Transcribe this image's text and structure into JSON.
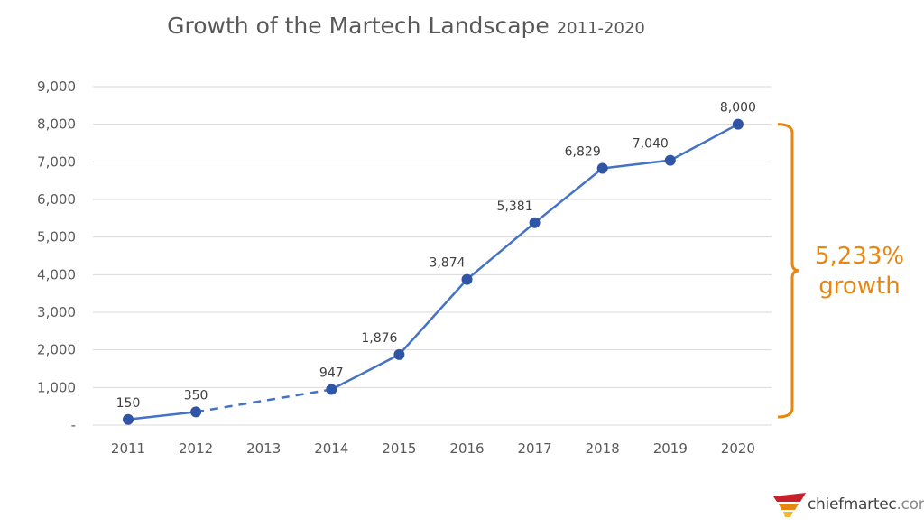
{
  "chart_data": {
    "type": "line",
    "title": "Growth of the Martech Landscape",
    "subtitle": "2011-2020",
    "categories": [
      "2011",
      "2012",
      "2013",
      "2014",
      "2015",
      "2016",
      "2017",
      "2018",
      "2019",
      "2020"
    ],
    "values": [
      150,
      350,
      null,
      947,
      1876,
      3874,
      5381,
      6829,
      7040,
      8000
    ],
    "data_labels": [
      "150",
      "350",
      "",
      "947",
      "1,876",
      "3,874",
      "5,381",
      "6,829",
      "7,040",
      "8,000"
    ],
    "dashed_segment": [
      "2012",
      "2014"
    ],
    "ylim": [
      0,
      9000
    ],
    "yticks": [
      0,
      1000,
      2000,
      3000,
      4000,
      5000,
      6000,
      7000,
      8000,
      9000
    ],
    "ytick_labels": [
      "-",
      "1,000",
      "2,000",
      "3,000",
      "4,000",
      "5,000",
      "6,000",
      "7,000",
      "8,000",
      "9,000"
    ],
    "grid": true,
    "line_color": "#4472c4",
    "marker_color": "#2f55a4",
    "annotation": {
      "line1": "5,233%",
      "line2": "growth",
      "color": "#e8860f"
    }
  },
  "logo": {
    "name": "chiefmartec",
    "suffix": ".com"
  }
}
